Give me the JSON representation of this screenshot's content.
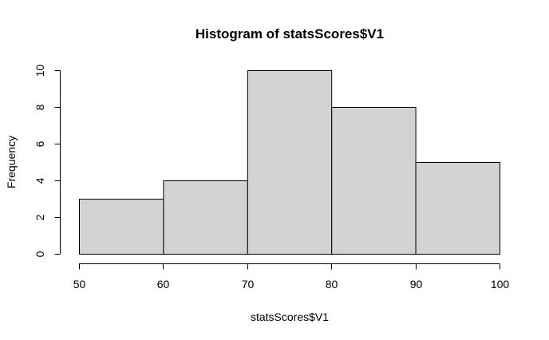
{
  "chart_data": {
    "type": "bar",
    "title": "Histogram of statsScores$V1",
    "xlabel": "statsScores$V1",
    "ylabel": "Frequency",
    "bins": [
      {
        "from": 50,
        "to": 60,
        "count": 3
      },
      {
        "from": 60,
        "to": 70,
        "count": 4
      },
      {
        "from": 70,
        "to": 80,
        "count": 10
      },
      {
        "from": 80,
        "to": 90,
        "count": 8
      },
      {
        "from": 90,
        "to": 100,
        "count": 5
      }
    ],
    "xlim": [
      50,
      100
    ],
    "ylim": [
      0,
      10
    ],
    "x_ticks": [
      50,
      60,
      70,
      80,
      90,
      100
    ],
    "y_ticks": [
      0,
      2,
      4,
      6,
      8,
      10
    ],
    "grid": false,
    "bar_color": "#d3d3d3",
    "edge_color": "#000000"
  }
}
